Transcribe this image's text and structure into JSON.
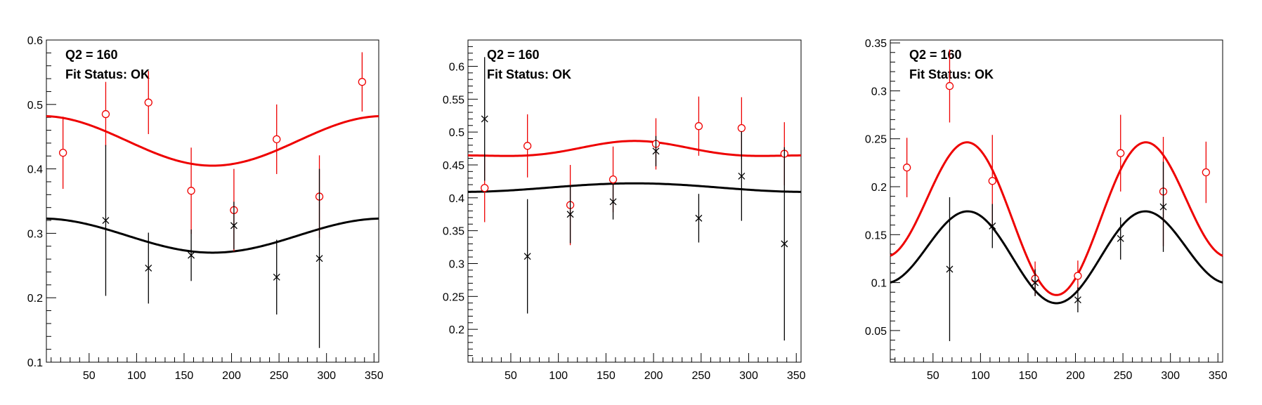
{
  "chart_data": [
    {
      "type": "scatter",
      "labels": [
        "Q2 = 160",
        "Fit Status: OK"
      ],
      "xlim": [
        5,
        355
      ],
      "ylim": [
        0.1,
        0.6
      ],
      "xticks": [
        50,
        100,
        150,
        200,
        250,
        300,
        350
      ],
      "yticks": [
        0.1,
        0.2,
        0.3,
        0.4,
        0.5,
        0.6
      ],
      "ytick_labels": [
        "0.1",
        "0.2",
        "0.3",
        "0.4",
        "0.5",
        "0.6"
      ],
      "grid": false,
      "series": [
        {
          "name": "red-data",
          "color": "#ee0000",
          "marker": "circle",
          "points": [
            {
              "x": 22.5,
              "y": 0.425,
              "err": 0.056
            },
            {
              "x": 67.5,
              "y": 0.485,
              "err": 0.05
            },
            {
              "x": 112.5,
              "y": 0.503,
              "err": 0.049
            },
            {
              "x": 157.5,
              "y": 0.366,
              "err": 0.067
            },
            {
              "x": 202.5,
              "y": 0.336,
              "err": 0.064
            },
            {
              "x": 247.5,
              "y": 0.446,
              "err": 0.054
            },
            {
              "x": 292.5,
              "y": 0.357,
              "err": 0.064
            },
            {
              "x": 337.5,
              "y": 0.535,
              "err": 0.046
            }
          ]
        },
        {
          "name": "black-data",
          "color": "#000000",
          "marker": "cross",
          "points": [
            {
              "x": 67.5,
              "y": 0.32,
              "err": 0.117
            },
            {
              "x": 112.5,
              "y": 0.246,
              "err": 0.055
            },
            {
              "x": 157.5,
              "y": 0.266,
              "err": 0.04
            },
            {
              "x": 202.5,
              "y": 0.312,
              "err": 0.037
            },
            {
              "x": 247.5,
              "y": 0.232,
              "err": 0.058
            },
            {
              "x": 292.5,
              "y": 0.261,
              "err": 0.139
            }
          ]
        }
      ],
      "fits": [
        {
          "name": "red-fit",
          "color": "#ee0000",
          "a": 0.4435,
          "b": 0.0385,
          "c": 0
        },
        {
          "name": "black-fit",
          "color": "#000000",
          "a": 0.2965,
          "b": 0.0265,
          "c": 0
        }
      ]
    },
    {
      "type": "scatter",
      "labels": [
        "Q2 = 160",
        "Fit Status: OK"
      ],
      "xlim": [
        5,
        355
      ],
      "ylim": [
        0.15,
        0.64
      ],
      "xticks": [
        50,
        100,
        150,
        200,
        250,
        300,
        350
      ],
      "yticks": [
        0.2,
        0.25,
        0.3,
        0.35,
        0.4,
        0.45,
        0.5,
        0.55,
        0.6
      ],
      "ytick_labels": [
        "0.2",
        "0.25",
        "0.3",
        "0.35",
        "0.4",
        "0.45",
        "0.5",
        "0.55",
        "0.6"
      ],
      "grid": false,
      "series": [
        {
          "name": "red-data",
          "color": "#ee0000",
          "marker": "circle",
          "points": [
            {
              "x": 22.5,
              "y": 0.415,
              "err": 0.052
            },
            {
              "x": 67.5,
              "y": 0.479,
              "err": 0.048
            },
            {
              "x": 112.5,
              "y": 0.389,
              "err": 0.061
            },
            {
              "x": 157.5,
              "y": 0.428,
              "err": 0.05
            },
            {
              "x": 202.5,
              "y": 0.482,
              "err": 0.039
            },
            {
              "x": 247.5,
              "y": 0.509,
              "err": 0.045
            },
            {
              "x": 292.5,
              "y": 0.506,
              "err": 0.047
            },
            {
              "x": 337.5,
              "y": 0.467,
              "err": 0.048
            }
          ]
        },
        {
          "name": "black-data",
          "color": "#000000",
          "marker": "cross",
          "points": [
            {
              "x": 22.5,
              "y": 0.52,
              "err": 0.094
            },
            {
              "x": 67.5,
              "y": 0.311,
              "err": 0.087
            },
            {
              "x": 112.5,
              "y": 0.375,
              "err": 0.044
            },
            {
              "x": 157.5,
              "y": 0.394,
              "err": 0.027
            },
            {
              "x": 202.5,
              "y": 0.471,
              "err": 0.023
            },
            {
              "x": 247.5,
              "y": 0.369,
              "err": 0.037
            },
            {
              "x": 292.5,
              "y": 0.433,
              "err": 0.068
            },
            {
              "x": 337.5,
              "y": 0.33,
              "err": 0.147
            }
          ]
        }
      ],
      "fits": [
        {
          "name": "red-fit",
          "color": "#ee0000",
          "a": 0.4715,
          "b": -0.011,
          "c": 0.004
        },
        {
          "name": "black-fit",
          "color": "#000000",
          "a": 0.4155,
          "b": -0.0065,
          "c": 0
        }
      ]
    },
    {
      "type": "scatter",
      "labels": [
        "Q2 = 160",
        "Fit Status: OK"
      ],
      "xlim": [
        5,
        355
      ],
      "ylim": [
        0.017,
        0.353
      ],
      "xticks": [
        50,
        100,
        150,
        200,
        250,
        300,
        350
      ],
      "yticks": [
        0.05,
        0.1,
        0.15,
        0.2,
        0.25,
        0.3,
        0.35
      ],
      "ytick_labels": [
        "0.05",
        "0.1",
        "0.15",
        "0.2",
        "0.25",
        "0.3",
        "0.35"
      ],
      "grid": false,
      "series": [
        {
          "name": "red-data",
          "color": "#ee0000",
          "marker": "circle",
          "points": [
            {
              "x": 22.5,
              "y": 0.22,
              "err": 0.031
            },
            {
              "x": 67.5,
              "y": 0.305,
              "err": 0.038
            },
            {
              "x": 112.5,
              "y": 0.206,
              "err": 0.048
            },
            {
              "x": 157.5,
              "y": 0.104,
              "err": 0.018
            },
            {
              "x": 202.5,
              "y": 0.107,
              "err": 0.016
            },
            {
              "x": 247.5,
              "y": 0.235,
              "err": 0.04
            },
            {
              "x": 292.5,
              "y": 0.195,
              "err": 0.057
            },
            {
              "x": 337.5,
              "y": 0.215,
              "err": 0.032
            }
          ]
        },
        {
          "name": "black-data",
          "color": "#000000",
          "marker": "cross",
          "points": [
            {
              "x": 67.5,
              "y": 0.114,
              "err": 0.075
            },
            {
              "x": 112.5,
              "y": 0.159,
              "err": 0.023
            },
            {
              "x": 157.5,
              "y": 0.1,
              "err": 0.014
            },
            {
              "x": 202.5,
              "y": 0.082,
              "err": 0.013
            },
            {
              "x": 247.5,
              "y": 0.146,
              "err": 0.022
            },
            {
              "x": 292.5,
              "y": 0.179,
              "err": 0.047
            }
          ]
        }
      ],
      "fits": [
        {
          "name": "red-fit",
          "color": "#ee0000",
          "a": 0.1763,
          "b": 0.02,
          "c": -0.0693
        },
        {
          "name": "black-fit",
          "color": "#000000",
          "a": 0.1315,
          "b": 0.0105,
          "c": -0.0425
        }
      ]
    }
  ]
}
